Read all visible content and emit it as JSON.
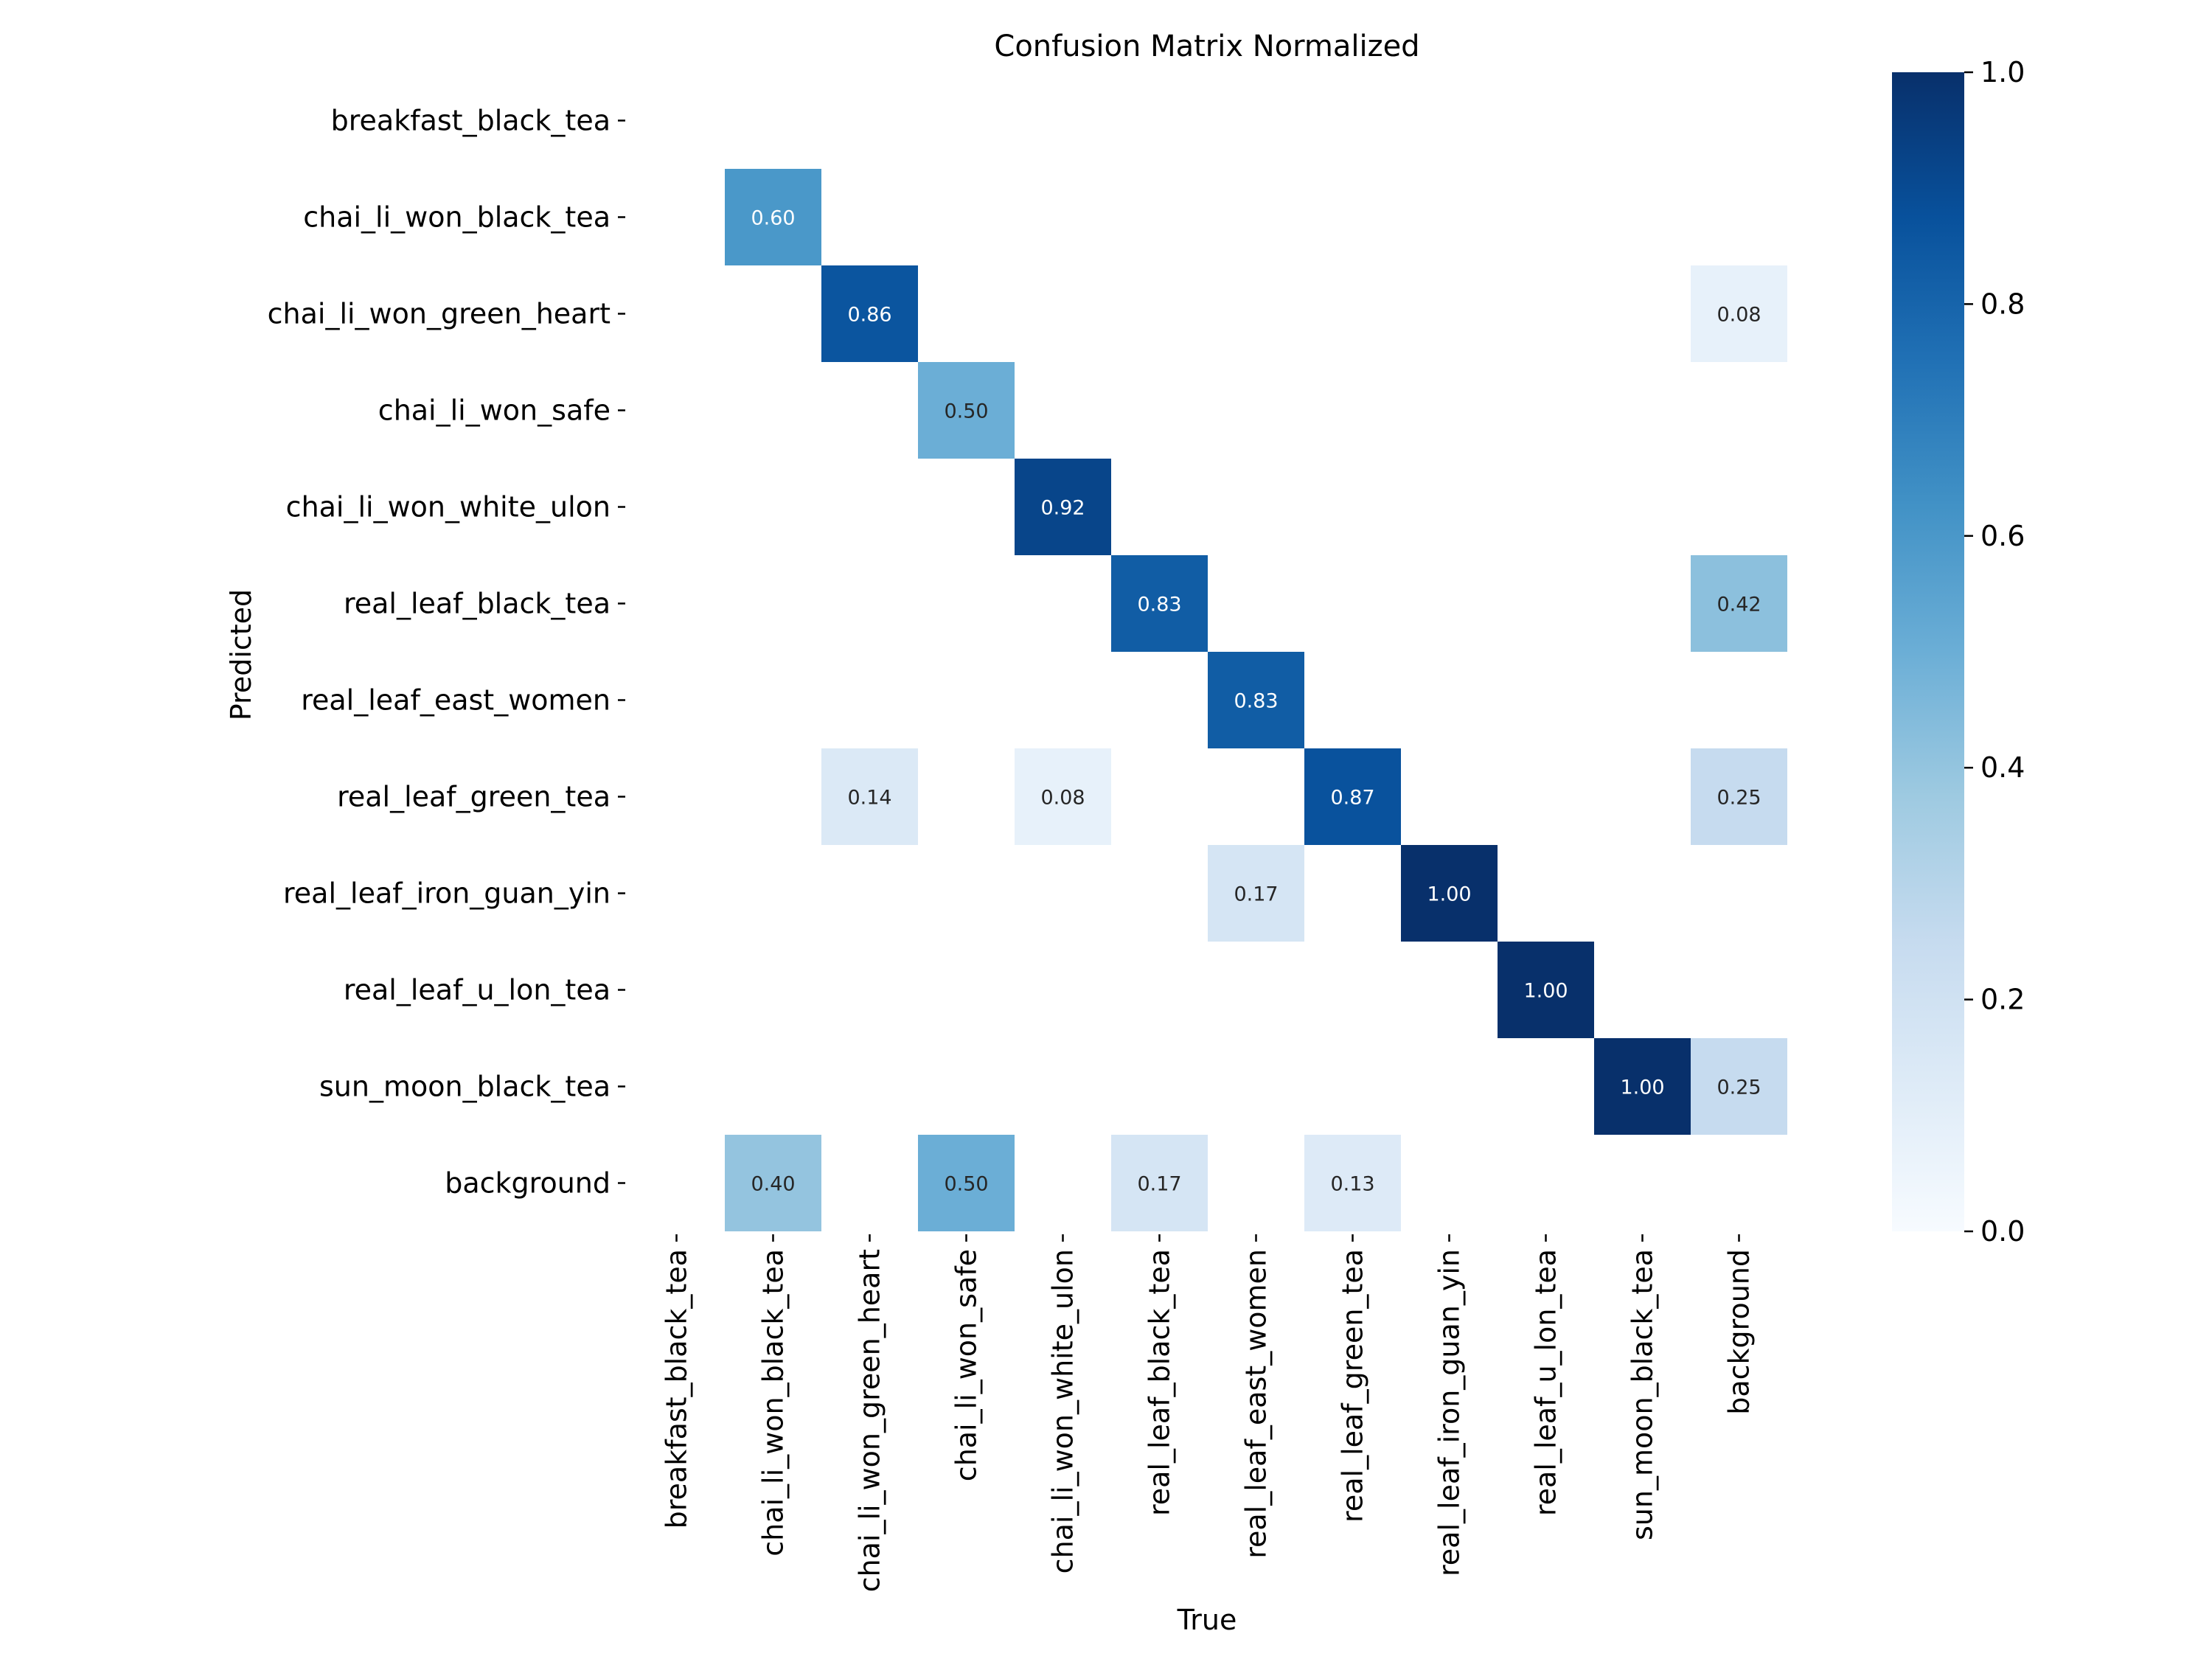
{
  "chart_data": {
    "type": "heatmap",
    "title": "Confusion Matrix Normalized",
    "xlabel": "True",
    "ylabel": "Predicted",
    "x_categories": [
      "breakfast_black_tea",
      "chai_li_won_black_tea",
      "chai_li_won_green_heart",
      "chai_li_won_safe",
      "chai_li_won_white_ulon",
      "real_leaf_black_tea",
      "real_leaf_east_women",
      "real_leaf_green_tea",
      "real_leaf_iron_guan_yin",
      "real_leaf_u_lon_tea",
      "sun_moon_black_tea",
      "background"
    ],
    "y_categories": [
      "breakfast_black_tea",
      "chai_li_won_black_tea",
      "chai_li_won_green_heart",
      "chai_li_won_safe",
      "chai_li_won_white_ulon",
      "real_leaf_black_tea",
      "real_leaf_east_women",
      "real_leaf_green_tea",
      "real_leaf_iron_guan_yin",
      "real_leaf_u_lon_tea",
      "sun_moon_black_tea",
      "background"
    ],
    "values": [
      [
        null,
        null,
        null,
        null,
        null,
        null,
        null,
        null,
        null,
        null,
        null,
        null
      ],
      [
        null,
        0.6,
        null,
        null,
        null,
        null,
        null,
        null,
        null,
        null,
        null,
        null
      ],
      [
        null,
        null,
        0.86,
        null,
        null,
        null,
        null,
        null,
        null,
        null,
        null,
        0.08
      ],
      [
        null,
        null,
        null,
        0.5,
        null,
        null,
        null,
        null,
        null,
        null,
        null,
        null
      ],
      [
        null,
        null,
        null,
        null,
        0.92,
        null,
        null,
        null,
        null,
        null,
        null,
        null
      ],
      [
        null,
        null,
        null,
        null,
        null,
        0.83,
        null,
        null,
        null,
        null,
        null,
        0.42
      ],
      [
        null,
        null,
        null,
        null,
        null,
        null,
        0.83,
        null,
        null,
        null,
        null,
        null
      ],
      [
        null,
        null,
        0.14,
        null,
        0.08,
        null,
        null,
        0.87,
        null,
        null,
        null,
        0.25
      ],
      [
        null,
        null,
        null,
        null,
        null,
        null,
        0.17,
        null,
        1.0,
        null,
        null,
        null
      ],
      [
        null,
        null,
        null,
        null,
        null,
        null,
        null,
        null,
        null,
        1.0,
        null,
        null
      ],
      [
        null,
        null,
        null,
        null,
        null,
        null,
        null,
        null,
        null,
        null,
        1.0,
        0.25
      ],
      [
        null,
        0.4,
        null,
        0.5,
        null,
        0.17,
        null,
        0.13,
        null,
        null,
        null,
        null
      ]
    ],
    "value_format": "0.00",
    "colormap": "Blues",
    "vmin": 0.0,
    "vmax": 1.0,
    "colorbar_ticks": [
      0.0,
      0.2,
      0.4,
      0.6,
      0.8,
      1.0
    ],
    "colorbar_tick_labels": [
      "0.0",
      "0.2",
      "0.4",
      "0.6",
      "0.8",
      "1.0"
    ],
    "empty_cell_color": "#ffffff"
  }
}
